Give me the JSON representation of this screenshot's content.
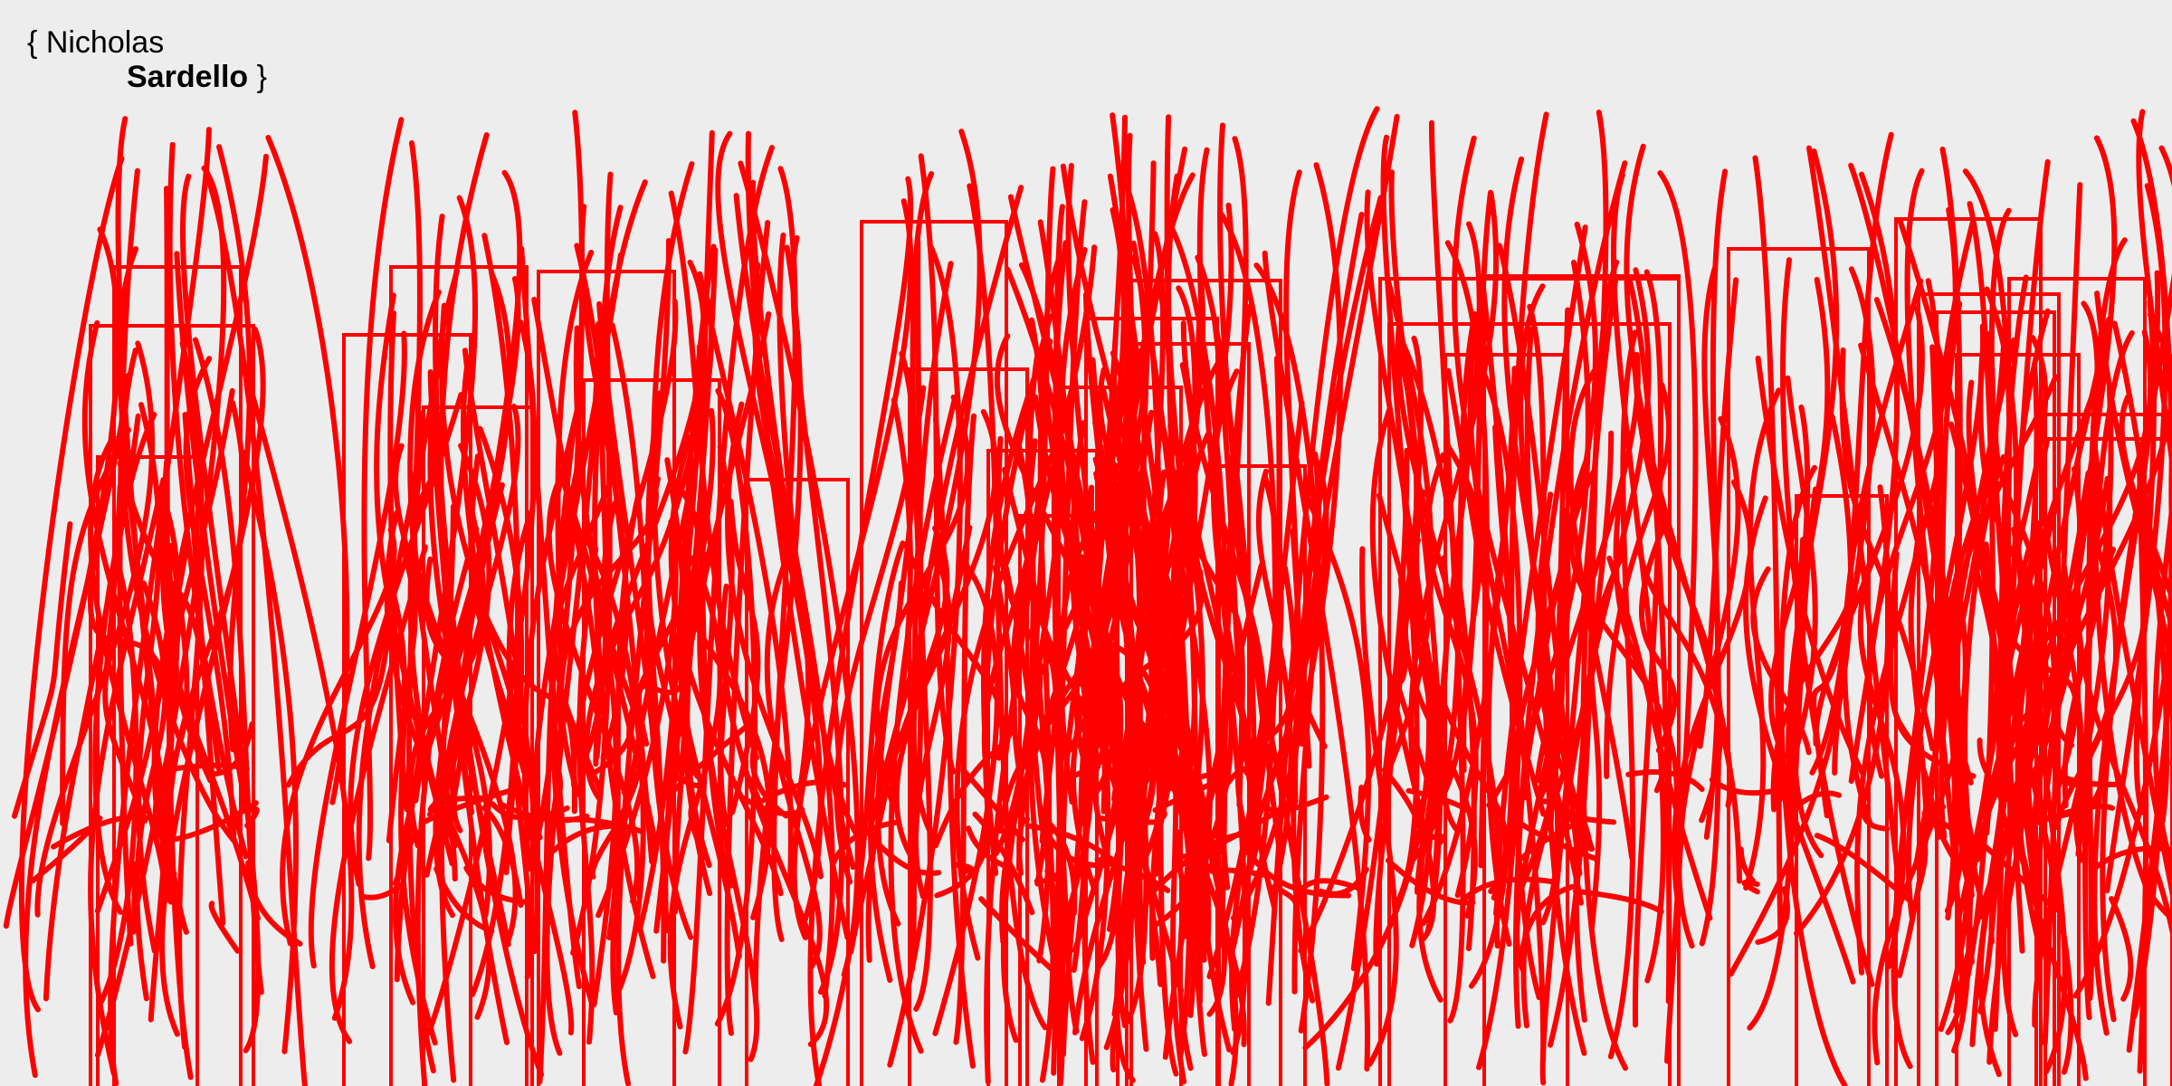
{
  "logo": {
    "open_brace": "{",
    "first_name": "Nicholas",
    "last_name": "Sardello",
    "close_brace": "}"
  },
  "artwork": {
    "stroke_color": "#ff0000",
    "background_color": "#ededed"
  }
}
